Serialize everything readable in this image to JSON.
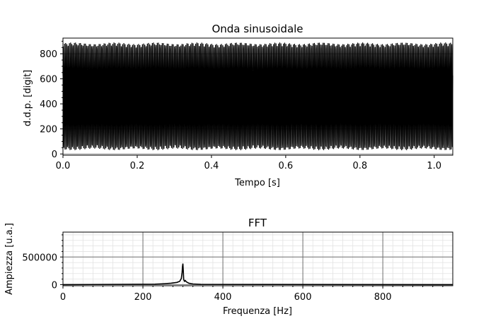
{
  "chart_data": [
    {
      "type": "line",
      "title": "Onda sinusoidale",
      "xlabel": "Tempo [s]",
      "ylabel": "d.d.p. [digit]",
      "xlim": [
        0,
        1.05
      ],
      "ylim": [
        -10,
        925
      ],
      "x_ticks": [
        "0.0",
        "0.2",
        "0.4",
        "0.6",
        "0.8",
        "1.0"
      ],
      "y_ticks": [
        "0",
        "200",
        "400",
        "600",
        "800"
      ],
      "grid": true,
      "series": [
        {
          "frequency_hz": 300,
          "min": 30,
          "max": 890,
          "duration_s": 1.05
        }
      ],
      "color": "#000000"
    },
    {
      "type": "line",
      "title": "FFT",
      "xlabel": "Frequenza [Hz]",
      "ylabel": "Ampiezza [u.a.]",
      "xlim": [
        0,
        975
      ],
      "ylim": [
        -20000,
        950000
      ],
      "x_ticks": [
        "0",
        "200",
        "400",
        "600",
        "800"
      ],
      "y_ticks": [
        "0",
        "500000"
      ],
      "grid": true,
      "series": [
        {
          "x": [
            0,
            230,
            250,
            270,
            285,
            292,
            296,
            298,
            299,
            300,
            301,
            302,
            304,
            306,
            308,
            310,
            315,
            325,
            345,
            975
          ],
          "y": [
            0,
            8000,
            15000,
            25000,
            40000,
            60000,
            110000,
            220000,
            330000,
            380000,
            250000,
            90000,
            60000,
            75000,
            55000,
            45000,
            25000,
            12000,
            5000,
            0
          ]
        }
      ],
      "color": "#000000"
    }
  ]
}
